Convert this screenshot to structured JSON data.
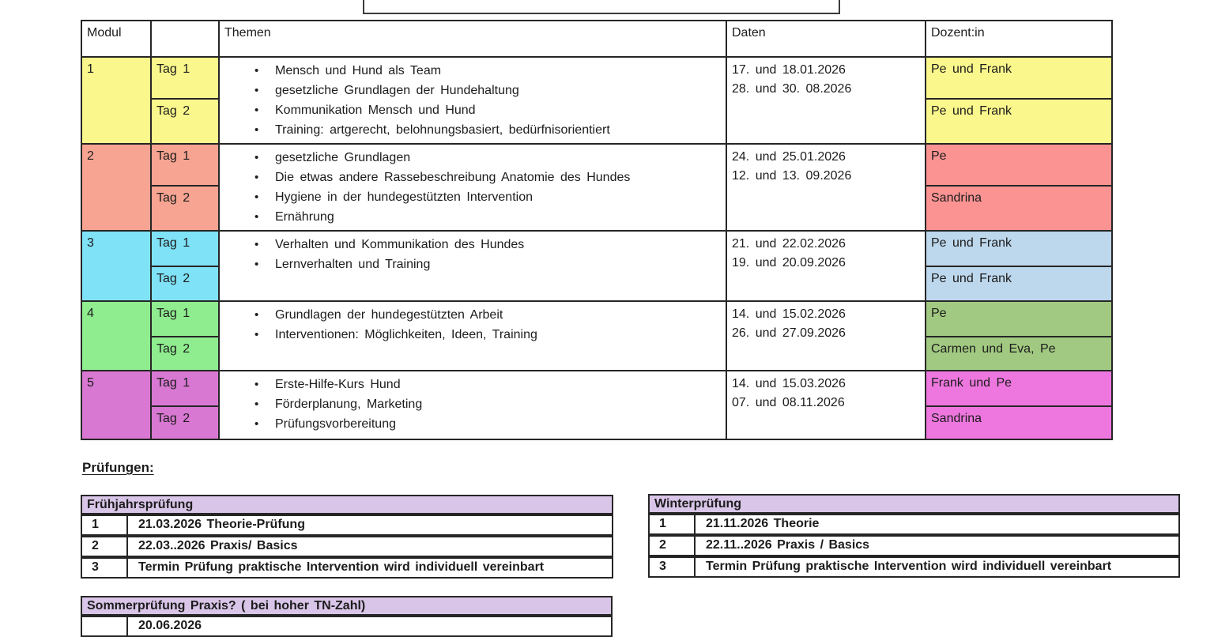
{
  "colors": {
    "border": "#262626",
    "exam_header_bg": "#D9C5E8",
    "row_colors": [
      {
        "modul_bg": "#FAF78C",
        "dozent_bg": "#FAF78C"
      },
      {
        "modul_bg": "#F7A492",
        "dozent_bg": "#FA9392"
      },
      {
        "modul_bg": "#7FE2F6",
        "dozent_bg": "#BDD7EC"
      },
      {
        "modul_bg": "#8FEC8F",
        "dozent_bg": "#A2C981"
      },
      {
        "modul_bg": "#D878D2",
        "dozent_bg": "#EE77DF"
      }
    ]
  },
  "schedule": {
    "headers": {
      "modul": "Modul",
      "day": "",
      "themen": "Themen",
      "daten": "Daten",
      "dozent": "Dozent:in"
    },
    "rows": [
      {
        "modul": "1",
        "days": [
          "Tag 1",
          "Tag 2"
        ],
        "themen": [
          "Mensch und Hund als Team",
          "gesetzliche Grundlagen der Hundehaltung",
          "Kommunikation Mensch und Hund",
          "Training: artgerecht, belohnungsbasiert, bedürfnisorientiert"
        ],
        "daten": [
          "17. und 18.01.2026",
          "28. und 30. 08.2026"
        ],
        "dozenten": [
          "Pe und Frank",
          "Pe und Frank"
        ]
      },
      {
        "modul": "2",
        "days": [
          "Tag 1",
          "Tag 2"
        ],
        "themen": [
          "gesetzliche Grundlagen",
          "Die etwas andere Rassebeschreibung Anatomie des Hundes",
          "Hygiene in der hundegestützten Intervention",
          "Ernährung"
        ],
        "daten": [
          "24. und 25.01.2026",
          "12. und 13. 09.2026"
        ],
        "dozenten": [
          "Pe",
          "Sandrina"
        ]
      },
      {
        "modul": "3",
        "days": [
          "Tag 1",
          "Tag 2"
        ],
        "themen": [
          "Verhalten und Kommunikation des Hundes",
          "Lernverhalten und Training"
        ],
        "daten": [
          "21. und 22.02.2026",
          "19. und 20.09.2026"
        ],
        "dozenten": [
          "Pe und Frank",
          "Pe und Frank"
        ]
      },
      {
        "modul": "4",
        "days": [
          "Tag 1",
          "Tag 2"
        ],
        "themen": [
          "Grundlagen der hundegestützten Arbeit",
          "Interventionen: Möglichkeiten, Ideen, Training"
        ],
        "daten": [
          "14. und 15.02.2026",
          "26. und 27.09.2026"
        ],
        "dozenten": [
          "Pe",
          "Carmen und Eva, Pe"
        ]
      },
      {
        "modul": "5",
        "days": [
          "Tag 1",
          "Tag 2"
        ],
        "themen": [
          "Erste-Hilfe-Kurs Hund",
          "Förderplanung, Marketing",
          "Prüfungsvorbereitung"
        ],
        "daten": [
          "14. und 15.03.2026",
          "07. und 08.11.2026"
        ],
        "dozenten": [
          "Frank und Pe",
          "Sandrina"
        ]
      }
    ]
  },
  "pruefungen": {
    "heading": "Prüfungen:",
    "tables": [
      {
        "title": "Frühjahrsprüfung",
        "rows": [
          {
            "num": "1",
            "text": "21.03.2026 Theorie-Prüfung"
          },
          {
            "num": "2",
            "text": "22.03..2026  Praxis/ Basics"
          },
          {
            "num": "3",
            "text": "Termin Prüfung praktische Intervention wird individuell vereinbart"
          }
        ]
      },
      {
        "title": "Winterprüfung",
        "rows": [
          {
            "num": "1",
            "text": "21.11.2026  Theorie"
          },
          {
            "num": "2",
            "text": "22.11..2026  Praxis / Basics"
          },
          {
            "num": "3",
            "text": "Termin Prüfung praktische Intervention wird individuell vereinbart"
          }
        ]
      },
      {
        "title": "Sommerprüfung Praxis? ( bei hoher TN-Zahl)",
        "rows": [
          {
            "num": "",
            "text": "20.06.2026"
          }
        ]
      }
    ]
  }
}
